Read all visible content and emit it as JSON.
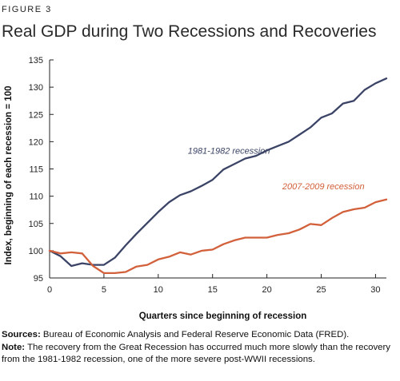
{
  "figure_label": "FIGURE 3",
  "chart_data": {
    "type": "line",
    "title": "Real GDP during Two Recessions and Recoveries",
    "xlabel": "Quarters since beginning of recession",
    "ylabel": "Index, beginning of each recession = 100",
    "xlim": [
      0,
      31
    ],
    "ylim": [
      95,
      135
    ],
    "x_ticks": [
      0,
      5,
      10,
      15,
      20,
      25,
      30
    ],
    "y_ticks": [
      95,
      100,
      105,
      110,
      115,
      120,
      125,
      130,
      135
    ],
    "grid": false,
    "series": [
      {
        "name": "1981-1982 recession",
        "color": "#3b4466",
        "x": [
          0,
          1,
          2,
          3,
          4,
          5,
          6,
          7,
          8,
          9,
          10,
          11,
          12,
          13,
          14,
          15,
          16,
          17,
          18,
          19,
          20,
          21,
          22,
          23,
          24,
          25,
          26,
          27,
          28,
          29,
          30,
          31
        ],
        "values": [
          100.0,
          99.0,
          97.2,
          97.7,
          97.4,
          97.4,
          98.7,
          101.0,
          103.1,
          105.1,
          107.1,
          108.9,
          110.2,
          110.9,
          111.9,
          113.0,
          114.9,
          115.9,
          116.9,
          117.4,
          118.4,
          119.2,
          120.0,
          121.3,
          122.6,
          124.4,
          125.2,
          127.0,
          127.5,
          129.5,
          130.7,
          131.6
        ]
      },
      {
        "name": "2007-2009 recession",
        "color": "#d2603a",
        "x": [
          0,
          1,
          2,
          3,
          4,
          5,
          6,
          7,
          8,
          9,
          10,
          11,
          12,
          13,
          14,
          15,
          16,
          17,
          18,
          19,
          20,
          21,
          22,
          23,
          24,
          25,
          26,
          27,
          28,
          29,
          30,
          31
        ],
        "values": [
          100.0,
          99.5,
          99.7,
          99.5,
          97.2,
          95.9,
          95.9,
          96.1,
          97.1,
          97.4,
          98.4,
          98.9,
          99.7,
          99.3,
          100.0,
          100.2,
          101.2,
          101.9,
          102.4,
          102.4,
          102.4,
          102.9,
          103.2,
          103.9,
          104.9,
          104.7,
          106.0,
          107.1,
          107.6,
          107.9,
          108.9,
          109.4
        ]
      }
    ],
    "annotations": [
      {
        "text": "1981-1982 recession",
        "series": 0,
        "at_x": 16.5,
        "at_y": 117.8
      },
      {
        "text": "2007-2009 recession",
        "series": 1,
        "at_x": 25.2,
        "at_y": 111.3
      }
    ]
  },
  "footer": {
    "sources_label": "Sources:",
    "sources_text": "Bureau of Economic Analysis and Federal Reserve Economic Data (FRED).",
    "note_label": "Note:",
    "note_text": "The recovery from the Great Recession has occurred much more slowly than the recovery from the 1981-1982 recession, one of the more severe post-WWII recessions."
  }
}
